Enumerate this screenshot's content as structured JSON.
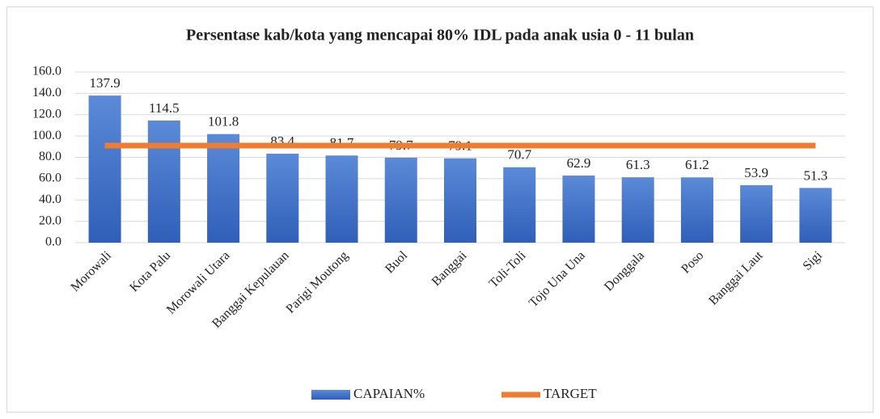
{
  "chart_data": {
    "type": "bar",
    "title": "Persentase kab/kota yang mencapai 80% IDL pada anak usia 0 - 11 bulan",
    "categories": [
      "Morowali",
      "Kota Palu",
      "Morowali Utara",
      "Banggai Kepulauan",
      "Parigi Moutong",
      "Buol",
      "Banggai",
      "Toli-Toli",
      "Tojo Una Una",
      "Donggala",
      "Poso",
      "Banggai Laut",
      "Sigi"
    ],
    "series": [
      {
        "name": "CAPAIAN%",
        "color": "#4472c4",
        "type": "bar",
        "values": [
          137.9,
          114.5,
          101.8,
          83.4,
          81.7,
          79.7,
          79.1,
          70.7,
          62.9,
          61.3,
          61.2,
          53.9,
          51.3
        ]
      },
      {
        "name": "TARGET",
        "color": "#ed7d31",
        "type": "line",
        "values": [
          91,
          91,
          91,
          91,
          91,
          91,
          91,
          91,
          91,
          91,
          91,
          91,
          91
        ]
      }
    ],
    "ylim": [
      0,
      160
    ],
    "yticks": [
      {
        "value": 0,
        "label": "0.0"
      },
      {
        "value": 20,
        "label": "20.0"
      },
      {
        "value": 40,
        "label": "40.0"
      },
      {
        "value": 60,
        "label": "60.0"
      },
      {
        "value": 80,
        "label": "80.0"
      },
      {
        "value": 100,
        "label": "100.0"
      },
      {
        "value": 120,
        "label": "120.0"
      },
      {
        "value": 140,
        "label": "140.0"
      },
      {
        "value": 160,
        "label": "160.0"
      }
    ],
    "grid": true,
    "legend": "bottom"
  }
}
